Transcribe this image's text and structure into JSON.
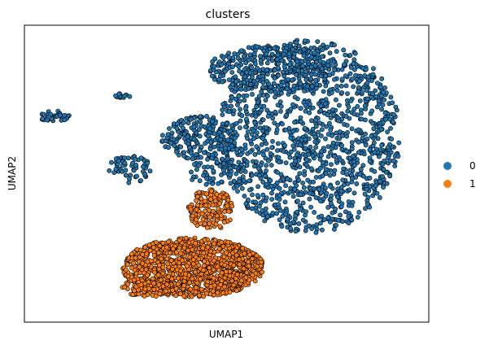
{
  "chart_data": {
    "type": "scatter",
    "title": "clusters",
    "xlabel": "UMAP1",
    "ylabel": "UMAP2",
    "grid": false,
    "ticks": false,
    "legend_position": "right",
    "series": [
      {
        "name": "0",
        "color": "#1f77b4",
        "regions": [
          {
            "shape": "ellipse",
            "cx": 8.2,
            "cy": 2.9,
            "rx": 5.2,
            "ry": 6.2,
            "n": 1300
          },
          {
            "shape": "ellipse",
            "cx": 6.0,
            "cy": 7.2,
            "rx": 3.6,
            "ry": 1.5,
            "n": 300
          },
          {
            "shape": "ellipse",
            "cx": 2.0,
            "cy": 2.8,
            "rx": 2.2,
            "ry": 1.4,
            "n": 220
          },
          {
            "shape": "ellipse",
            "cx": -2.0,
            "cy": 0.8,
            "rx": 1.2,
            "ry": 0.9,
            "n": 60
          },
          {
            "shape": "ellipse",
            "cx": 2.8,
            "cy": 0.6,
            "rx": 1.6,
            "ry": 0.9,
            "n": 60
          },
          {
            "shape": "ellipse",
            "cx": -6.3,
            "cy": 4.2,
            "rx": 0.9,
            "ry": 0.35,
            "n": 40
          },
          {
            "shape": "ellipse",
            "cx": -2.4,
            "cy": 5.5,
            "rx": 0.5,
            "ry": 0.15,
            "n": 15
          }
        ]
      },
      {
        "name": "1",
        "color": "#ff7f0e",
        "regions": [
          {
            "shape": "ellipse",
            "cx": 1.6,
            "cy": -5.5,
            "rx": 4.0,
            "ry": 1.9,
            "n": 1100
          },
          {
            "shape": "ellipse",
            "cx": 2.6,
            "cy": -1.8,
            "rx": 1.3,
            "ry": 1.3,
            "n": 150
          },
          {
            "shape": "ellipse",
            "cx": -1.0,
            "cy": -6.8,
            "rx": 1.5,
            "ry": 0.6,
            "n": 120
          }
        ]
      }
    ],
    "xlim": [
      -8,
      15
    ],
    "ylim": [
      -9,
      10
    ]
  }
}
